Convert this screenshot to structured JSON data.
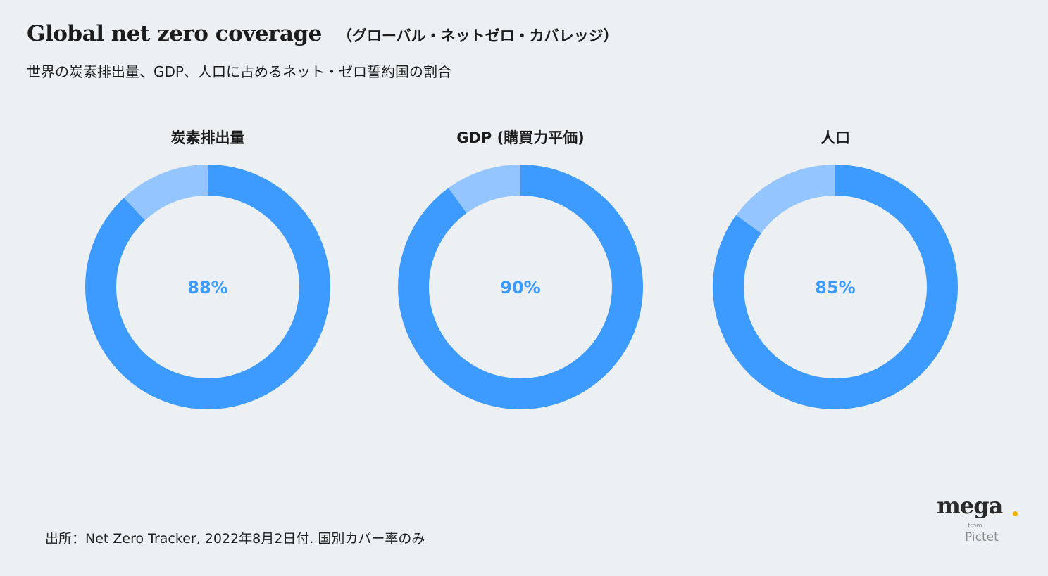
{
  "header": {
    "title": "Global net zero coverage",
    "title_sub": "（グローバル・ネットゼロ・カバレッジ）",
    "subtitle": "世界の炭素排出量、GDP、人口に占めるネット・ゼロ誓約国の割合"
  },
  "colors": {
    "primary": "#3d9bff",
    "remainder": "#94c5ff",
    "label": "#3d9bff",
    "background": "#edf0f2"
  },
  "chart_data": [
    {
      "type": "pie",
      "title": "炭素排出量",
      "values": [
        88,
        12
      ],
      "center_label": "88%"
    },
    {
      "type": "pie",
      "title": "GDP (購買力平価)",
      "values": [
        90,
        10
      ],
      "center_label": "90%"
    },
    {
      "type": "pie",
      "title": "人口",
      "values": [
        85,
        15
      ],
      "center_label": "85%"
    }
  ],
  "footer": {
    "source": "出所：Net Zero Tracker, 2022年8月2日付. 国別カバー率のみ"
  },
  "logo": {
    "name": "mega",
    "from": "from",
    "brand": "Pictet"
  }
}
